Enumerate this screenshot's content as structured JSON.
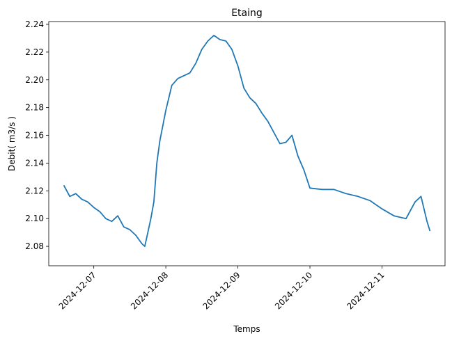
{
  "chart_data": {
    "type": "line",
    "title": "Etaing",
    "xlabel": "Temps",
    "ylabel": "Debit( m3/s )",
    "x_ticks": [
      "2024-12-07",
      "2024-12-08",
      "2024-12-09",
      "2024-12-10",
      "2024-12-11"
    ],
    "y_ticks": [
      2.08,
      2.1,
      2.12,
      2.14,
      2.16,
      2.18,
      2.2,
      2.22,
      2.24
    ],
    "xlim": [
      "2024-12-06 09:00",
      "2024-12-11 21:00"
    ],
    "ylim": [
      2.066,
      2.242
    ],
    "grid": false,
    "legend": "none",
    "color": "#1f77b4",
    "series": [
      {
        "x": [
          "2024-12-06 14:00",
          "2024-12-06 16:00",
          "2024-12-06 18:00",
          "2024-12-06 20:00",
          "2024-12-06 22:00",
          "2024-12-07 00:00",
          "2024-12-07 02:00",
          "2024-12-07 04:00",
          "2024-12-07 06:00",
          "2024-12-07 08:00",
          "2024-12-07 10:00",
          "2024-12-07 12:00",
          "2024-12-07 14:00",
          "2024-12-07 16:00",
          "2024-12-07 17:00",
          "2024-12-07 18:00",
          "2024-12-07 19:00",
          "2024-12-07 20:00",
          "2024-12-07 21:00",
          "2024-12-07 22:00",
          "2024-12-08 00:00",
          "2024-12-08 02:00",
          "2024-12-08 04:00",
          "2024-12-08 06:00",
          "2024-12-08 08:00",
          "2024-12-08 10:00",
          "2024-12-08 12:00",
          "2024-12-08 14:00",
          "2024-12-08 16:00",
          "2024-12-08 18:00",
          "2024-12-08 20:00",
          "2024-12-08 22:00",
          "2024-12-09 00:00",
          "2024-12-09 02:00",
          "2024-12-09 04:00",
          "2024-12-09 06:00",
          "2024-12-09 08:00",
          "2024-12-09 10:00",
          "2024-12-09 12:00",
          "2024-12-09 14:00",
          "2024-12-09 16:00",
          "2024-12-09 18:00",
          "2024-12-09 20:00",
          "2024-12-09 22:00",
          "2024-12-10 00:00",
          "2024-12-10 04:00",
          "2024-12-10 08:00",
          "2024-12-10 12:00",
          "2024-12-10 16:00",
          "2024-12-10 20:00",
          "2024-12-11 00:00",
          "2024-12-11 04:00",
          "2024-12-11 08:00",
          "2024-12-11 11:00",
          "2024-12-11 13:00",
          "2024-12-11 15:00",
          "2024-12-11 16:00"
        ],
        "y": [
          2.124,
          2.116,
          2.118,
          2.114,
          2.112,
          2.108,
          2.105,
          2.1,
          2.098,
          2.102,
          2.094,
          2.092,
          2.088,
          2.082,
          2.08,
          2.09,
          2.1,
          2.112,
          2.14,
          2.156,
          2.178,
          2.196,
          2.201,
          2.203,
          2.205,
          2.212,
          2.222,
          2.228,
          2.232,
          2.229,
          2.228,
          2.222,
          2.21,
          2.194,
          2.187,
          2.183,
          2.176,
          2.17,
          2.162,
          2.154,
          2.155,
          2.16,
          2.145,
          2.135,
          2.122,
          2.121,
          2.121,
          2.118,
          2.116,
          2.113,
          2.107,
          2.102,
          2.1,
          2.112,
          2.116,
          2.098,
          2.091
        ]
      }
    ]
  }
}
